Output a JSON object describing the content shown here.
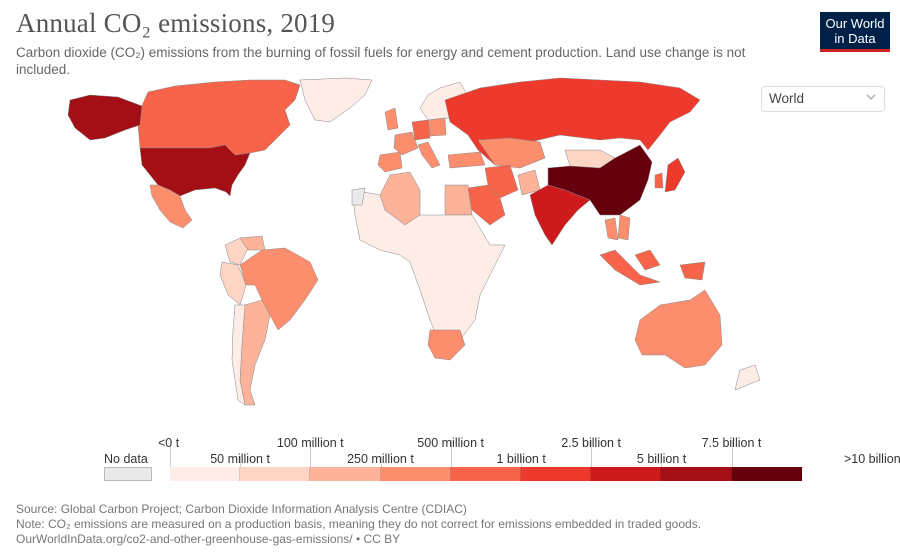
{
  "header": {
    "title": "Annual CO₂ emissions, 2019",
    "subtitle": "Carbon dioxide (CO₂) emissions from the burning of fossil fuels for energy and cement production. Land use change is not included.",
    "logo_line1": "Our World",
    "logo_line2": "in Data"
  },
  "region_selector": {
    "value": "World",
    "icon": "chevron-down-icon"
  },
  "colors": {
    "no_data": "#e9e9e9",
    "bins": [
      "#fdede6",
      "#fcd5c5",
      "#fcb39a",
      "#fc8e6e",
      "#f86449",
      "#ee3a2c",
      "#cf1a1d",
      "#a30f15",
      "#67000d"
    ],
    "logo_bg": "#002147",
    "logo_accent": "#ce261e"
  },
  "legend": {
    "no_data_label": "No data",
    "upper_labels": [
      "<0 t",
      "100 million t",
      "500 million t",
      "2.5 billion t",
      "7.5 billion t"
    ],
    "lower_labels": [
      "50 million t",
      "250 million t",
      "1 billion t",
      "5 billion t",
      ">10 billion t"
    ]
  },
  "chart_data": {
    "type": "choropleth",
    "title": "Annual CO₂ emissions, 2019",
    "unit": "tonnes",
    "bins": [
      "<0 t",
      "50 million t",
      "100 million t",
      "250 million t",
      "500 million t",
      "1 billion t",
      "2.5 billion t",
      "5 billion t",
      "7.5 billion t",
      ">10 billion t"
    ],
    "regions": [
      {
        "name": "China",
        "bin": 8
      },
      {
        "name": "United States",
        "bin": 7
      },
      {
        "name": "India",
        "bin": 6
      },
      {
        "name": "Russia",
        "bin": 5
      },
      {
        "name": "Japan",
        "bin": 5
      },
      {
        "name": "Iran",
        "bin": 4
      },
      {
        "name": "Germany",
        "bin": 4
      },
      {
        "name": "Indonesia",
        "bin": 4
      },
      {
        "name": "South Korea",
        "bin": 4
      },
      {
        "name": "Saudi Arabia",
        "bin": 4
      },
      {
        "name": "Canada",
        "bin": 4
      },
      {
        "name": "South Africa",
        "bin": 3
      },
      {
        "name": "Brazil",
        "bin": 3
      },
      {
        "name": "Mexico",
        "bin": 3
      },
      {
        "name": "Australia",
        "bin": 3
      },
      {
        "name": "Turkey",
        "bin": 3
      },
      {
        "name": "United Kingdom",
        "bin": 3
      },
      {
        "name": "Italy",
        "bin": 3
      },
      {
        "name": "Poland",
        "bin": 3
      },
      {
        "name": "France",
        "bin": 3
      },
      {
        "name": "Kazakhstan",
        "bin": 3
      },
      {
        "name": "Thailand",
        "bin": 3
      },
      {
        "name": "Spain",
        "bin": 3
      },
      {
        "name": "Egypt",
        "bin": 2
      },
      {
        "name": "Argentina",
        "bin": 2
      },
      {
        "name": "Algeria",
        "bin": 2
      },
      {
        "name": "Nigeria",
        "bin": 2
      },
      {
        "name": "Pakistan",
        "bin": 2
      },
      {
        "name": "Vietnam",
        "bin": 3
      },
      {
        "name": "Venezuela",
        "bin": 2
      },
      {
        "name": "Colombia",
        "bin": 1
      },
      {
        "name": "Mongolia",
        "bin": 1
      },
      {
        "name": "Peru",
        "bin": 1
      },
      {
        "name": "Greenland",
        "bin": 0
      },
      {
        "name": "Western Sahara",
        "bin": -1
      }
    ]
  },
  "footer": {
    "source": "Source: Global Carbon Project; Carbon Dioxide Information Analysis Centre (CDIAC)",
    "note": "Note: CO₂ emissions are measured on a production basis, meaning they do not correct for emissions embedded in traded goods.",
    "url": "OurWorldInData.org/co2-and-other-greenhouse-gas-emissions/ • CC BY"
  }
}
